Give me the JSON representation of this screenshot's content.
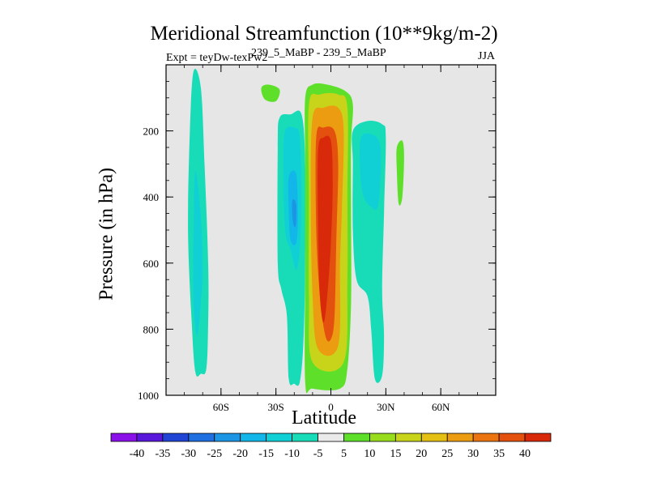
{
  "chart_data": {
    "type": "heatmap",
    "title": "Meridional Streamfunction (10**9kg/m-2)",
    "left_label": "Expt = teyDw-texPw2",
    "center_label": "239_5_MaBP - 239_5_MaBP",
    "right_label": "JJA",
    "xlabel": "Latitude",
    "ylabel": "Pressure (in hPa)",
    "xlim": [
      -90,
      90
    ],
    "ylim": [
      1000,
      0
    ],
    "xticks": [
      {
        "value": -60,
        "label": "60S"
      },
      {
        "value": -30,
        "label": "30S"
      },
      {
        "value": 0,
        "label": "0"
      },
      {
        "value": 30,
        "label": "30N"
      },
      {
        "value": 60,
        "label": "60N"
      }
    ],
    "yticks": [
      {
        "value": 200,
        "label": "200"
      },
      {
        "value": 400,
        "label": "400"
      },
      {
        "value": 600,
        "label": "600"
      },
      {
        "value": 800,
        "label": "800"
      },
      {
        "value": 1000,
        "label": "1000"
      }
    ],
    "colorbar": {
      "levels": [
        "-40",
        "-35",
        "-30",
        "-25",
        "-20",
        "-15",
        "-10",
        "-5",
        "5",
        "10",
        "15",
        "20",
        "25",
        "30",
        "35",
        "40"
      ],
      "colors": [
        "#8a12e8",
        "#5a17dc",
        "#2244d4",
        "#1f6fe0",
        "#1c95e4",
        "#12b6e8",
        "#10d0d6",
        "#18dcb8",
        "#eaeaea",
        "#5ee02a",
        "#98dc1e",
        "#c8d41a",
        "#e4c014",
        "#ec9c10",
        "#ec7410",
        "#e4500e",
        "#d82a0a"
      ]
    },
    "contours": [
      {
        "band": "-5",
        "points": [
          [
            -75,
            20
          ],
          [
            -71,
            70
          ],
          [
            -69,
            300
          ],
          [
            -67,
            600
          ],
          [
            -67,
            780
          ],
          [
            -68,
            920
          ],
          [
            -71,
            935
          ],
          [
            -74,
            930
          ],
          [
            -76,
            780
          ],
          [
            -78,
            500
          ],
          [
            -77,
            200
          ]
        ]
      },
      {
        "band": "-10",
        "points": [
          [
            -74,
            320
          ],
          [
            -71,
            460
          ],
          [
            -70,
            620
          ],
          [
            -71,
            720
          ],
          [
            -73,
            820
          ],
          [
            -75,
            720
          ],
          [
            -75,
            520
          ]
        ]
      },
      {
        "band": "-5",
        "points": [
          [
            -28,
            160
          ],
          [
            -22,
            150
          ],
          [
            -16,
            150
          ],
          [
            -14,
            300
          ],
          [
            -14,
            600
          ],
          [
            -15,
            840
          ],
          [
            -17,
            960
          ],
          [
            -20,
            965
          ],
          [
            -23,
            950
          ],
          [
            -24,
            760
          ],
          [
            -27,
            680
          ],
          [
            -29,
            600
          ],
          [
            -29,
            250
          ]
        ]
      },
      {
        "band": "-10",
        "points": [
          [
            -25,
            200
          ],
          [
            -20,
            190
          ],
          [
            -17,
            220
          ],
          [
            -16,
            400
          ],
          [
            -17,
            560
          ],
          [
            -19,
            620
          ],
          [
            -22,
            560
          ],
          [
            -25,
            500
          ],
          [
            -26,
            300
          ]
        ]
      },
      {
        "band": "-15",
        "points": [
          [
            -23,
            340
          ],
          [
            -19,
            330
          ],
          [
            -18,
            460
          ],
          [
            -19,
            540
          ],
          [
            -22,
            530
          ],
          [
            -23,
            440
          ]
        ]
      },
      {
        "band": "-20",
        "points": [
          [
            -21,
            410
          ],
          [
            -19,
            420
          ],
          [
            -19,
            480
          ],
          [
            -20,
            490
          ],
          [
            -21,
            460
          ]
        ]
      },
      {
        "band": "5",
        "points": [
          [
            -14,
            100
          ],
          [
            -10,
            60
          ],
          [
            -2,
            60
          ],
          [
            8,
            80
          ],
          [
            12,
            120
          ],
          [
            11,
            240
          ],
          [
            11,
            450
          ],
          [
            11,
            720
          ],
          [
            9,
            920
          ],
          [
            5,
            980
          ],
          [
            -10,
            980
          ],
          [
            -14,
            960
          ],
          [
            -14,
            600
          ],
          [
            -14,
            300
          ]
        ]
      },
      {
        "band": "15",
        "points": [
          [
            -12,
            120
          ],
          [
            -6,
            90
          ],
          [
            4,
            90
          ],
          [
            9,
            130
          ],
          [
            9,
            400
          ],
          [
            9,
            650
          ],
          [
            7,
            900
          ],
          [
            -10,
            900
          ],
          [
            -12,
            700
          ],
          [
            -12,
            400
          ]
        ]
      },
      {
        "band": "25",
        "points": [
          [
            -10,
            160
          ],
          [
            -4,
            130
          ],
          [
            4,
            130
          ],
          [
            7,
            200
          ],
          [
            6,
            440
          ],
          [
            5,
            600
          ],
          [
            4,
            850
          ],
          [
            -7,
            860
          ],
          [
            -10,
            700
          ],
          [
            -11,
            400
          ]
        ]
      },
      {
        "band": "35",
        "points": [
          [
            -8,
            220
          ],
          [
            -4,
            190
          ],
          [
            2,
            200
          ],
          [
            4,
            300
          ],
          [
            3,
            520
          ],
          [
            2,
            760
          ],
          [
            0,
            830
          ],
          [
            -3,
            820
          ],
          [
            -6,
            700
          ],
          [
            -8,
            500
          ]
        ]
      },
      {
        "band": "40",
        "points": [
          [
            -7,
            260
          ],
          [
            -4,
            220
          ],
          [
            0,
            230
          ],
          [
            1,
            360
          ],
          [
            0,
            540
          ],
          [
            -2,
            700
          ],
          [
            -4,
            780
          ],
          [
            -6,
            700
          ],
          [
            -7,
            500
          ]
        ]
      },
      {
        "band": "5",
        "points": [
          [
            -38,
            70
          ],
          [
            -34,
            60
          ],
          [
            -28,
            75
          ],
          [
            -30,
            110
          ],
          [
            -36,
            105
          ]
        ]
      },
      {
        "band": "-5",
        "points": [
          [
            12,
            200
          ],
          [
            20,
            170
          ],
          [
            28,
            180
          ],
          [
            30,
            220
          ],
          [
            29,
            450
          ],
          [
            28,
            680
          ],
          [
            29,
            820
          ],
          [
            28,
            940
          ],
          [
            24,
            950
          ],
          [
            22,
            800
          ],
          [
            20,
            700
          ],
          [
            14,
            650
          ],
          [
            12,
            500
          ],
          [
            12,
            300
          ]
        ]
      },
      {
        "band": "-10",
        "points": [
          [
            16,
            230
          ],
          [
            22,
            210
          ],
          [
            27,
            250
          ],
          [
            26,
            420
          ],
          [
            22,
            430
          ],
          [
            17,
            380
          ]
        ]
      },
      {
        "band": "5",
        "points": [
          [
            36,
            250
          ],
          [
            39,
            230
          ],
          [
            40,
            280
          ],
          [
            39,
            400
          ],
          [
            37,
            420
          ],
          [
            36,
            320
          ]
        ]
      }
    ]
  }
}
